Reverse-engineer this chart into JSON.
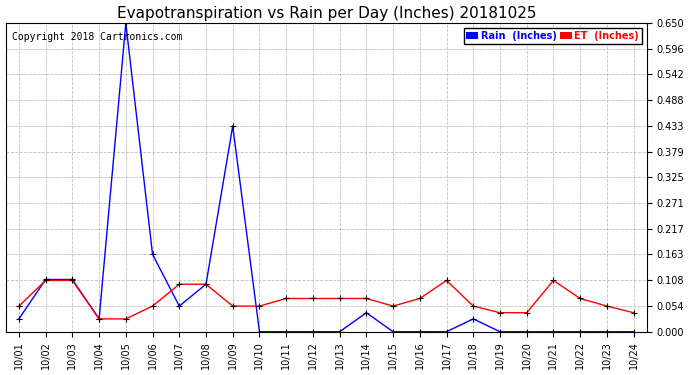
{
  "title": "Evapotranspiration vs Rain per Day (Inches) 20181025",
  "copyright": "Copyright 2018 Cartronics.com",
  "x_labels": [
    "10/01",
    "10/02",
    "10/03",
    "10/04",
    "10/05",
    "10/06",
    "10/07",
    "10/08",
    "10/09",
    "10/10",
    "10/11",
    "10/12",
    "10/13",
    "10/14",
    "10/15",
    "10/16",
    "10/17",
    "10/18",
    "10/19",
    "10/20",
    "10/21",
    "10/22",
    "10/23",
    "10/24"
  ],
  "rain_values": [
    0.027,
    0.11,
    0.11,
    0.027,
    0.65,
    0.163,
    0.054,
    0.1,
    0.433,
    0.0,
    0.0,
    0.0,
    0.0,
    0.04,
    0.0,
    0.0,
    0.0,
    0.027,
    0.0,
    0.0,
    0.0,
    0.0,
    0.0,
    0.0
  ],
  "et_values": [
    0.054,
    0.108,
    0.108,
    0.027,
    0.027,
    0.054,
    0.1,
    0.1,
    0.054,
    0.054,
    0.07,
    0.07,
    0.07,
    0.07,
    0.054,
    0.07,
    0.108,
    0.054,
    0.04,
    0.04,
    0.108,
    0.07,
    0.054,
    0.04
  ],
  "rain_color": "#0000ff",
  "et_color": "#ff0000",
  "background_color": "#ffffff",
  "grid_color": "#b0b0b0",
  "ylim": [
    0.0,
    0.65
  ],
  "yticks": [
    0.0,
    0.054,
    0.108,
    0.163,
    0.217,
    0.271,
    0.325,
    0.379,
    0.433,
    0.488,
    0.542,
    0.596,
    0.65
  ],
  "title_fontsize": 11,
  "copyright_fontsize": 7,
  "tick_fontsize": 7,
  "legend_rain_label": "Rain  (Inches)",
  "legend_et_label": "ET  (Inches)"
}
